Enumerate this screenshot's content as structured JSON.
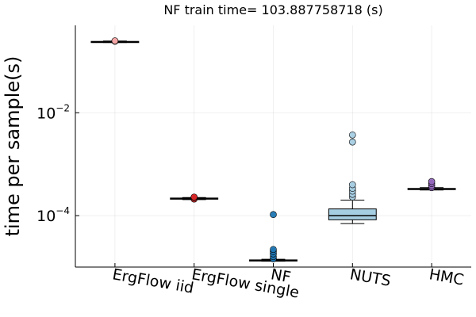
{
  "chart_data": {
    "type": "boxplot",
    "title": "NF train time= 103.887758718 (s)",
    "xlabel": "",
    "ylabel": "time per sample(s)",
    "yscale": "log10",
    "ylim": [
      1e-05,
      0.5
    ],
    "yticks": [
      {
        "value": 0.01,
        "base": "10",
        "exp": "−2"
      },
      {
        "value": 0.0001,
        "base": "10",
        "exp": "−4"
      }
    ],
    "grid": true,
    "legend": "none",
    "categories": [
      "ErgFlow iid",
      "ErgFlow single",
      "NF",
      "NUTS",
      "HMC"
    ],
    "series": [
      {
        "category": "ErgFlow iid",
        "color": "#f4a6a6",
        "q1": 0.236,
        "median": 0.24,
        "q3": 0.244,
        "whisker_low": 0.232,
        "whisker_high": 0.248,
        "outliers": [
          0.245,
          0.25
        ]
      },
      {
        "category": "ErgFlow single",
        "color": "#d62728",
        "q1": 0.00021,
        "median": 0.000215,
        "q3": 0.00022,
        "whisker_low": 0.000205,
        "whisker_high": 0.000225,
        "outliers": [
          0.00021,
          0.000225,
          0.00023
        ]
      },
      {
        "category": "NF",
        "color": "#1f77b4",
        "q1": 1.32e-05,
        "median": 1.35e-05,
        "q3": 1.38e-05,
        "whisker_low": 1.3e-05,
        "whisker_high": 1.42e-05,
        "outliers": [
          1.45e-05,
          1.6e-05,
          1.8e-05,
          2e-05,
          2.2e-05,
          0.000105
        ]
      },
      {
        "category": "NUTS",
        "color": "#a6cee3",
        "q1": 8.3e-05,
        "median": 0.0001,
        "q3": 0.000135,
        "whisker_low": 7e-05,
        "whisker_high": 0.0002,
        "outliers": [
          0.00023,
          0.00026,
          0.0003,
          0.00034,
          0.0004,
          0.0027,
          0.0037
        ]
      },
      {
        "category": "HMC",
        "color": "#9467bd",
        "q1": 0.000325,
        "median": 0.00033,
        "q3": 0.000338,
        "whisker_low": 0.000315,
        "whisker_high": 0.00035,
        "outliers": [
          0.00035,
          0.00038,
          0.00042,
          0.00046
        ]
      }
    ]
  }
}
